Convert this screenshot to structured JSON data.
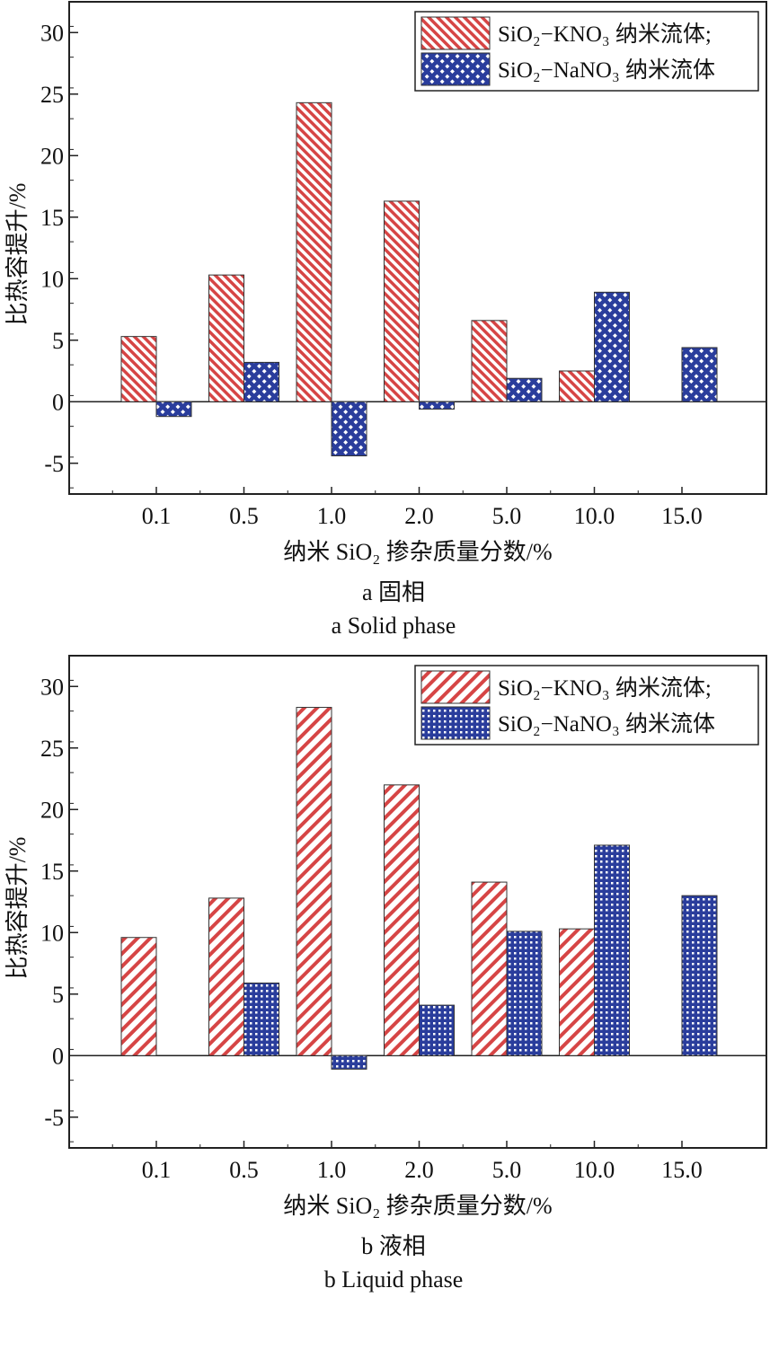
{
  "chart_data": [
    {
      "type": "bar",
      "ylabel": "比热容提升/%",
      "xlabel": "纳米 SiO₂ 掺杂质量分数/%",
      "caption_cn": "a 固相",
      "caption_en": "a Solid phase",
      "categories": [
        "0.1",
        "0.5",
        "1.0",
        "2.0",
        "5.0",
        "10.0",
        "15.0"
      ],
      "ylim": [
        -7.5,
        32.5
      ],
      "yticks": [
        30,
        25,
        20,
        15,
        10,
        5,
        0,
        -5
      ],
      "legend_position": "top-right",
      "series": [
        {
          "name": "SiO₂−KNO₃ 纳米流体;",
          "color": "#d64545",
          "pattern": "diagonal-hatch",
          "values": [
            5.3,
            10.3,
            24.3,
            16.3,
            6.6,
            2.5,
            null
          ]
        },
        {
          "name": "SiO₂−NaNO₃ 纳米流体",
          "color": "#2a3d9c",
          "pattern": "crosshatch",
          "values": [
            -1.2,
            3.2,
            -4.4,
            -0.6,
            1.9,
            8.9,
            4.4
          ]
        }
      ]
    },
    {
      "type": "bar",
      "ylabel": "比热容提升/%",
      "xlabel": "纳米 SiO₂ 掺杂质量分数/%",
      "caption_cn": "b 液相",
      "caption_en": "b Liquid phase",
      "categories": [
        "0.1",
        "0.5",
        "1.0",
        "2.0",
        "5.0",
        "10.0",
        "15.0"
      ],
      "ylim": [
        -7.5,
        32.5
      ],
      "yticks": [
        30,
        25,
        20,
        15,
        10,
        5,
        0,
        -5
      ],
      "legend_position": "top-right",
      "series": [
        {
          "name": "SiO₂−KNO₃ 纳米流体;",
          "color": "#d64545",
          "pattern": "wide-diagonal-hatch",
          "values": [
            9.6,
            12.8,
            28.3,
            22.0,
            14.1,
            10.3,
            null
          ]
        },
        {
          "name": "SiO₂−NaNO₃ 纳米流体",
          "color": "#2a3d9c",
          "pattern": "grid",
          "values": [
            null,
            5.9,
            -1.1,
            4.1,
            10.1,
            17.1,
            13.0
          ]
        }
      ]
    }
  ]
}
